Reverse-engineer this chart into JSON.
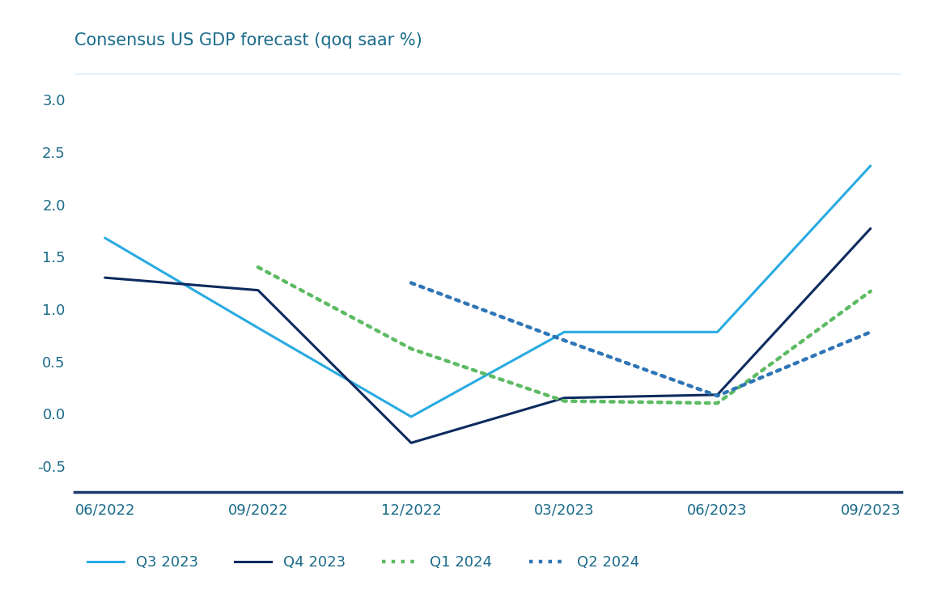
{
  "title": "Consensus US GDP forecast (qoq saar %)",
  "title_color": "#1a6b8a",
  "background_color": "#ffffff",
  "x_labels": [
    "06/2022",
    "09/2022",
    "12/2022",
    "03/2023",
    "06/2023",
    "09/2023"
  ],
  "x_values": [
    0,
    1,
    2,
    3,
    4,
    5
  ],
  "ylim": [
    -0.75,
    3.25
  ],
  "yticks": [
    -0.5,
    0.0,
    0.5,
    1.0,
    1.5,
    2.0,
    2.5,
    3.0
  ],
  "series": {
    "Q3 2023": {
      "color": "#29ABE2",
      "linestyle": "solid",
      "linewidth": 2.2,
      "values": [
        1.68,
        0.82,
        -0.03,
        0.78,
        0.78,
        2.37
      ]
    },
    "Q4 2023": {
      "color": "#0D2B5E",
      "linestyle": "solid",
      "linewidth": 2.2,
      "values": [
        1.3,
        1.18,
        -0.28,
        0.15,
        0.18,
        1.77
      ]
    },
    "Q1 2024": {
      "color": "#5DBB63",
      "linestyle": "dotted",
      "linewidth": 3.2,
      "values": [
        null,
        1.4,
        0.62,
        0.12,
        0.1,
        1.17
      ]
    },
    "Q2 2024": {
      "color": "#2E75B6",
      "linestyle": "dotted",
      "linewidth": 3.2,
      "values": [
        null,
        null,
        1.25,
        0.7,
        0.17,
        0.78
      ]
    }
  },
  "legend_entries": [
    {
      "label": "Q3 2023",
      "color": "#29ABE2",
      "linestyle": "solid",
      "linewidth": 2.2
    },
    {
      "label": "Q4 2023",
      "color": "#0D2B5E",
      "linestyle": "solid",
      "linewidth": 2.2
    },
    {
      "label": "Q1 2024",
      "color": "#5DBB63",
      "linestyle": "dotted",
      "linewidth": 3.2
    },
    {
      "label": "Q2 2024",
      "color": "#2E75B6",
      "linestyle": "dotted",
      "linewidth": 3.2
    }
  ],
  "axis_label_color": "#1a6b8a",
  "tick_color": "#1a6b8a",
  "separator_color": "#1a3a6b",
  "top_line_color": "#29ABE2",
  "grid_on": false
}
